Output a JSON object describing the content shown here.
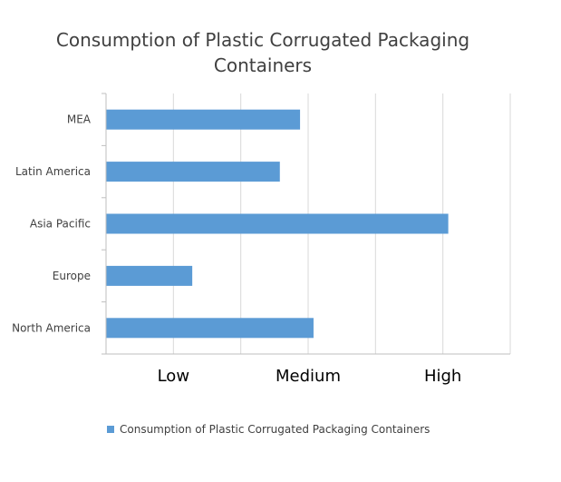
{
  "chart_data": {
    "type": "bar",
    "orientation": "horizontal",
    "title_lines": [
      "Consumption of Plastic Corrugated Packaging",
      "Containers"
    ],
    "categories": [
      "North America",
      "Europe",
      "Asia Pacific",
      "Latin America",
      "MEA"
    ],
    "series": [
      {
        "name": "Consumption of Plastic Corrugated Packaging Containers",
        "values": [
          1.54,
          0.64,
          2.54,
          1.29,
          1.44
        ],
        "color": "#5b9bd5"
      }
    ],
    "x_tick_labels": [
      "Low",
      "Medium",
      "High"
    ],
    "x_tick_values": [
      0.5,
      1.5,
      2.5
    ],
    "xlim": [
      0,
      3
    ],
    "grid": true,
    "legend_position": "bottom"
  }
}
